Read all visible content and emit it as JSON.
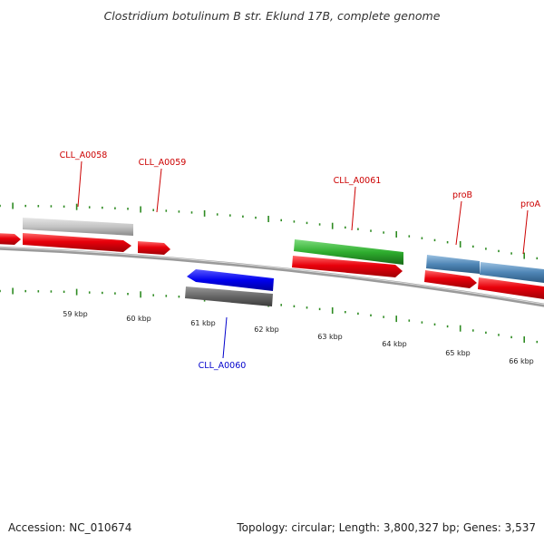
{
  "title": "Clostridium botulinum B str. Eklund 17B, complete genome",
  "footer": {
    "accession": "Accession: NC_010674",
    "summary": "Topology: circular; Length: 3,800,327 bp; Genes: 3,537"
  },
  "colors": {
    "forward_cds": "#e8000b",
    "gene_label_forward": "#cc0000",
    "gene_label_reverse": "#0000cc",
    "tick": "#2e8b22",
    "backbone": "#888888"
  },
  "kbp_labels": [
    "59 kbp",
    "60 kbp",
    "61 kbp",
    "62 kbp",
    "63 kbp",
    "64 kbp",
    "65 kbp",
    "66 kbp"
  ],
  "genes": [
    {
      "name": "CLL_A0058",
      "strand": "forward",
      "label_color": "#cc0000",
      "feature_color": "#c8c8c8"
    },
    {
      "name": "CLL_A0059",
      "strand": "forward",
      "label_color": "#cc0000",
      "feature_color": "#e8000b"
    },
    {
      "name": "CLL_A0060",
      "strand": "reverse",
      "label_color": "#0000cc",
      "feature_color": "#0000ee"
    },
    {
      "name": "CLL_A0061",
      "strand": "forward",
      "label_color": "#cc0000",
      "feature_color": "#2fae2f"
    },
    {
      "name": "proB",
      "strand": "forward",
      "label_color": "#cc0000",
      "feature_color": "#4f86b6"
    },
    {
      "name": "proA",
      "strand": "forward",
      "label_color": "#cc0000",
      "feature_color": "#4f86b6"
    }
  ]
}
